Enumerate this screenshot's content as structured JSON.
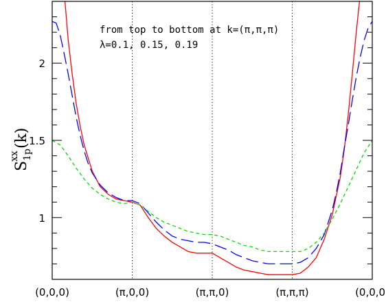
{
  "chart_data": {
    "type": "line",
    "ylim": [
      0.6,
      2.4
    ],
    "xlim": [
      0,
      4
    ],
    "x_ticks": [
      {
        "x": 0,
        "label": "(0,0,0)"
      },
      {
        "x": 1,
        "label": "(π,0,0)"
      },
      {
        "x": 2,
        "label": "(π,π,0)"
      },
      {
        "x": 3,
        "label": "(π,π,π)"
      },
      {
        "x": 4,
        "label": "(0,0,0)"
      }
    ],
    "y_ticks": [
      {
        "y": 1,
        "label": "1"
      },
      {
        "y": 1.5,
        "label": "1.5"
      },
      {
        "y": 2,
        "label": "2"
      }
    ],
    "vlines": [
      1,
      2,
      3
    ],
    "ylabel_main": "S",
    "ylabel_sup": "xx",
    "ylabel_sub": "1p",
    "ylabel_arg": "(k)",
    "annotations": [
      "from top to bottom at k=(π,π,π)",
      "λ=0.1, 0.15, 0.19"
    ],
    "series": [
      {
        "color": "#ff0000",
        "dash": "solid",
        "x": [
          0.16,
          0.2,
          0.25,
          0.3,
          0.35,
          0.4,
          0.5,
          0.6,
          0.7,
          0.8,
          0.9,
          1.0,
          1.1,
          1.2,
          1.3,
          1.4,
          1.5,
          1.6,
          1.7,
          1.8,
          1.9,
          2.0,
          2.1,
          2.2,
          2.3,
          2.4,
          2.5,
          2.6,
          2.7,
          2.8,
          2.9,
          3.0,
          3.1,
          3.2,
          3.3,
          3.4,
          3.5,
          3.6,
          3.65,
          3.7,
          3.75,
          3.8,
          3.84
        ],
        "y": [
          2.4,
          2.15,
          1.93,
          1.74,
          1.59,
          1.47,
          1.3,
          1.2,
          1.15,
          1.12,
          1.11,
          1.1,
          1.08,
          1.0,
          0.93,
          0.88,
          0.84,
          0.81,
          0.78,
          0.77,
          0.77,
          0.77,
          0.74,
          0.71,
          0.68,
          0.66,
          0.65,
          0.64,
          0.63,
          0.63,
          0.63,
          0.63,
          0.64,
          0.68,
          0.74,
          0.86,
          1.02,
          1.26,
          1.44,
          1.67,
          1.93,
          2.2,
          2.4
        ]
      },
      {
        "color": "#0000ff",
        "dash": "long",
        "x": [
          0,
          0.05,
          0.1,
          0.15,
          0.2,
          0.25,
          0.3,
          0.35,
          0.4,
          0.45,
          0.5,
          0.6,
          0.7,
          0.8,
          0.9,
          1.0,
          1.1,
          1.2,
          1.3,
          1.4,
          1.5,
          1.6,
          1.7,
          1.8,
          1.9,
          2.0,
          2.1,
          2.2,
          2.3,
          2.4,
          2.5,
          2.6,
          2.7,
          2.8,
          2.9,
          3.0,
          3.1,
          3.2,
          3.3,
          3.4,
          3.5,
          3.55,
          3.6,
          3.65,
          3.7,
          3.75,
          3.8,
          3.85,
          3.9,
          3.95,
          4.0
        ],
        "y": [
          2.27,
          2.26,
          2.18,
          2.06,
          1.93,
          1.79,
          1.65,
          1.53,
          1.43,
          1.35,
          1.29,
          1.21,
          1.16,
          1.13,
          1.11,
          1.11,
          1.09,
          1.03,
          0.97,
          0.92,
          0.88,
          0.86,
          0.85,
          0.84,
          0.84,
          0.83,
          0.81,
          0.79,
          0.76,
          0.74,
          0.72,
          0.71,
          0.7,
          0.7,
          0.7,
          0.7,
          0.71,
          0.74,
          0.8,
          0.89,
          1.05,
          1.16,
          1.29,
          1.45,
          1.6,
          1.76,
          1.91,
          2.04,
          2.15,
          2.23,
          2.27
        ]
      },
      {
        "color": "#00dd00",
        "dash": "short",
        "x": [
          0,
          0.1,
          0.2,
          0.3,
          0.4,
          0.5,
          0.6,
          0.7,
          0.8,
          0.9,
          1.0,
          1.1,
          1.2,
          1.3,
          1.4,
          1.5,
          1.6,
          1.7,
          1.8,
          1.9,
          2.0,
          2.1,
          2.2,
          2.3,
          2.4,
          2.5,
          2.6,
          2.7,
          2.8,
          2.9,
          3.0,
          3.1,
          3.2,
          3.3,
          3.4,
          3.5,
          3.6,
          3.7,
          3.8,
          3.9,
          4.0
        ],
        "y": [
          1.5,
          1.47,
          1.4,
          1.32,
          1.25,
          1.19,
          1.15,
          1.12,
          1.1,
          1.09,
          1.1,
          1.08,
          1.04,
          1.0,
          0.97,
          0.95,
          0.93,
          0.91,
          0.9,
          0.89,
          0.89,
          0.88,
          0.86,
          0.84,
          0.82,
          0.81,
          0.79,
          0.78,
          0.78,
          0.78,
          0.78,
          0.78,
          0.8,
          0.84,
          0.9,
          0.99,
          1.09,
          1.2,
          1.31,
          1.42,
          1.5
        ]
      }
    ]
  }
}
